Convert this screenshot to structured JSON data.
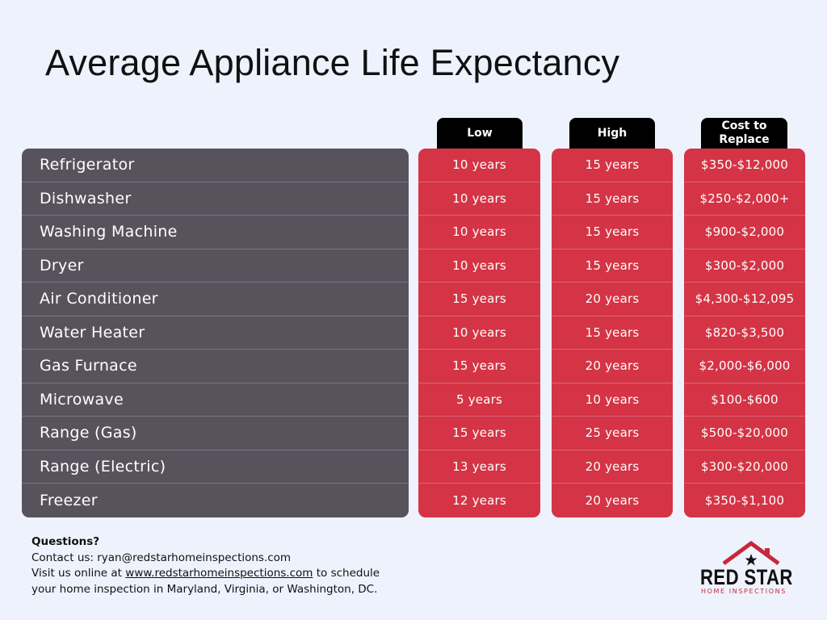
{
  "title": "Average Appliance Life Expectancy",
  "colors": {
    "background": "#eef2fd",
    "name_panel": "#57525c",
    "value_column": "#d43445",
    "tab": "#000000",
    "brand_red": "#c8283a"
  },
  "chart_data": {
    "type": "table",
    "title": "Average Appliance Life Expectancy",
    "columns": [
      "Low",
      "High",
      "Cost to Replace"
    ],
    "rows": [
      {
        "appliance": "Refrigerator",
        "low": "10 years",
        "high": "15 years",
        "cost": "$350-$12,000"
      },
      {
        "appliance": "Dishwasher",
        "low": "10 years",
        "high": "15 years",
        "cost": "$250-$2,000+"
      },
      {
        "appliance": "Washing Machine",
        "low": "10 years",
        "high": "15 years",
        "cost": "$900-$2,000"
      },
      {
        "appliance": "Dryer",
        "low": "10 years",
        "high": "15 years",
        "cost": "$300-$2,000"
      },
      {
        "appliance": "Air Conditioner",
        "low": "15 years",
        "high": "20 years",
        "cost": "$4,300-$12,095"
      },
      {
        "appliance": "Water Heater",
        "low": "10 years",
        "high": "15 years",
        "cost": "$820-$3,500"
      },
      {
        "appliance": "Gas Furnace",
        "low": "15 years",
        "high": "20 years",
        "cost": "$2,000-$6,000"
      },
      {
        "appliance": "Microwave",
        "low": "5 years",
        "high": "10 years",
        "cost": "$100-$600"
      },
      {
        "appliance": "Range (Gas)",
        "low": "15 years",
        "high": "25 years",
        "cost": "$500-$20,000"
      },
      {
        "appliance": "Range (Electric)",
        "low": "13 years",
        "high": "20 years",
        "cost": "$300-$20,000"
      },
      {
        "appliance": "Freezer",
        "low": "12 years",
        "high": "20 years",
        "cost": "$350-$1,100"
      }
    ]
  },
  "headers": {
    "low": "Low",
    "high": "High",
    "cost_line1": "Cost to",
    "cost_line2": "Replace"
  },
  "footer": {
    "questions": "Questions?",
    "contact": "Contact us: ryan@redstarhomeinspections.com",
    "visit_prefix": "Visit us online at ",
    "visit_link": "www.redstarhomeinspections.com",
    "visit_suffix": " to schedule your home inspection in Maryland, Virginia, or Washington, DC."
  },
  "logo": {
    "name": "RED STAR",
    "sub": "HOME INSPECTIONS",
    "icon": "house-roof-star-icon"
  }
}
